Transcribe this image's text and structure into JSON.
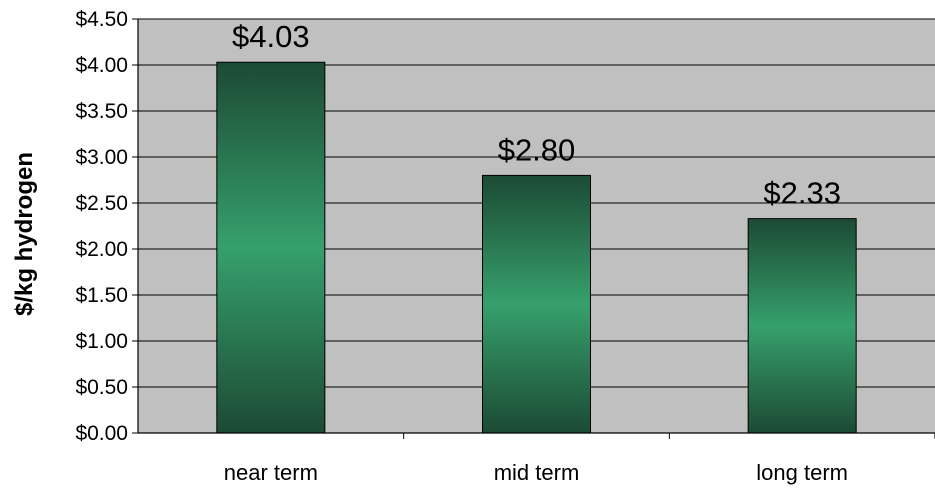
{
  "chart_data": {
    "type": "bar",
    "title": "",
    "xlabel": "",
    "ylabel": "$/kg hydrogen",
    "ylim": [
      0,
      4.5
    ],
    "y_ticks": [
      "$0.00",
      "$0.50",
      "$1.00",
      "$1.50",
      "$2.00",
      "$2.50",
      "$3.00",
      "$3.50",
      "$4.00",
      "$4.50"
    ],
    "categories": [
      "near term",
      "mid term",
      "long term"
    ],
    "values": [
      4.03,
      2.8,
      2.33
    ],
    "data_labels": [
      "$4.03",
      "$2.80",
      "$2.33"
    ],
    "grid": true,
    "legend": "none",
    "colors": {
      "plot_background": "#c0c0c0",
      "bar_dark": "#1c4a34",
      "bar_light": "#36a06c",
      "gridline": "#000000"
    }
  }
}
